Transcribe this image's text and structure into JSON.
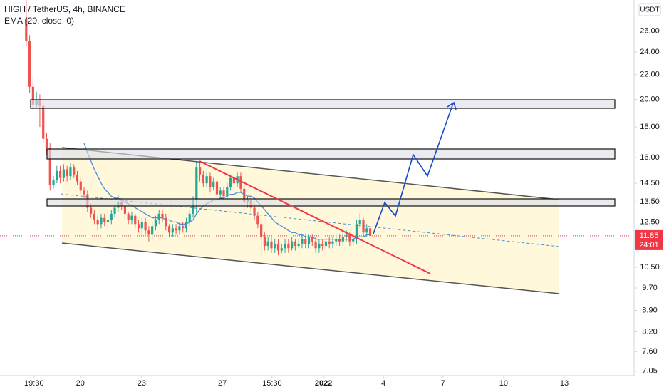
{
  "chart_data": {
    "type": "candlestick",
    "title": "HIGH / TetherUS, 4h, BINANCE",
    "currency": "USDT",
    "log_scale": true,
    "grid": false,
    "up_color": "#26a69a",
    "down_color": "#ef5350",
    "xlim": [
      -7.7,
      178.5
    ],
    "ylim": [
      6.93,
      29.3
    ],
    "xticks": [
      {
        "value": 2.3,
        "label": "19:30"
      },
      {
        "value": 15.9,
        "label": "20"
      },
      {
        "value": 33.9,
        "label": "23"
      },
      {
        "value": 57.6,
        "label": "27"
      },
      {
        "value": 72.2,
        "label": "15:30"
      },
      {
        "value": 87.3,
        "label": "2022"
      },
      {
        "value": 104.9,
        "label": "4"
      },
      {
        "value": 122.4,
        "label": "7"
      },
      {
        "value": 140.2,
        "label": "10"
      },
      {
        "value": 158,
        "label": "13"
      }
    ],
    "yticks": [
      {
        "value": 26,
        "label": "26.00"
      },
      {
        "value": 24,
        "label": "24.00"
      },
      {
        "value": 22,
        "label": "22.00"
      },
      {
        "value": 20,
        "label": "20.00"
      },
      {
        "value": 18,
        "label": "18.00"
      },
      {
        "value": 16,
        "label": "16.00"
      },
      {
        "value": 14.5,
        "label": "14.50"
      },
      {
        "value": 13.5,
        "label": "13.50"
      },
      {
        "value": 12.5,
        "label": "12.50"
      },
      {
        "value": 10.5,
        "label": "10.50"
      },
      {
        "value": 9.7,
        "label": "9.70"
      },
      {
        "value": 8.9,
        "label": "8.90"
      },
      {
        "value": 8.2,
        "label": "8.20"
      },
      {
        "value": 7.6,
        "label": "7.60"
      },
      {
        "value": 7.05,
        "label": "7.05"
      }
    ],
    "open": [
      27.3,
      25.0,
      21.0,
      19.6,
      20.0,
      19.5,
      17.2,
      16.6,
      14.4,
      14.7,
      15.2,
      14.8,
      15.3,
      14.9,
      15.4,
      15.0,
      14.6,
      14.1,
      13.9,
      13.2,
      12.9,
      12.6,
      12.4,
      12.7,
      12.5,
      12.6,
      12.9,
      13.2,
      13.5,
      13.3,
      12.9,
      12.6,
      12.8,
      12.4,
      12.2,
      12.5,
      12.1,
      11.9,
      12.3,
      12.6,
      12.9,
      12.7,
      12.3,
      12.0,
      12.2,
      12.1,
      12.3,
      12.2,
      12.5,
      12.9,
      13.6,
      15.4,
      15.0,
      14.5,
      14.9,
      14.3,
      14.6,
      13.9,
      14.1,
      13.8,
      14.3,
      14.8,
      14.5,
      14.9,
      14.2,
      13.5,
      13.6,
      13.2,
      12.8,
      12.4,
      11.8,
      11.4,
      11.6,
      11.3,
      11.5,
      11.2,
      11.3,
      11.5,
      11.3,
      11.6,
      11.4,
      11.5,
      11.7,
      11.5,
      11.8,
      11.6,
      11.3,
      11.5,
      11.4,
      11.6,
      11.5,
      11.6,
      11.7,
      11.6,
      11.8,
      11.9,
      11.6,
      11.7,
      12.4,
      12.6,
      12.0,
      12.2
    ],
    "high": [
      29.3,
      25.6,
      21.8,
      20.6,
      20.4,
      19.8,
      17.6,
      16.9,
      14.9,
      15.5,
      15.5,
      15.6,
      15.5,
      15.7,
      15.6,
      15.2,
      14.8,
      14.3,
      14.1,
      13.4,
      13.1,
      12.8,
      12.9,
      12.9,
      12.8,
      13.1,
      13.4,
      13.9,
      13.7,
      13.5,
      13.0,
      13.0,
      12.9,
      12.6,
      12.7,
      12.7,
      12.3,
      12.5,
      12.8,
      13.1,
      13.1,
      12.9,
      12.4,
      12.4,
      12.4,
      12.5,
      12.5,
      12.7,
      13.1,
      13.8,
      15.8,
      15.7,
      15.2,
      15.1,
      15.1,
      14.8,
      14.8,
      14.3,
      14.3,
      14.5,
      15.0,
      15.0,
      15.1,
      15.1,
      14.4,
      13.8,
      13.8,
      13.4,
      13.0,
      12.6,
      12.0,
      11.8,
      11.8,
      11.7,
      11.7,
      11.5,
      11.7,
      11.7,
      11.8,
      11.7,
      11.7,
      11.9,
      11.9,
      11.9,
      11.9,
      11.8,
      11.7,
      11.7,
      11.8,
      11.8,
      11.8,
      11.9,
      11.9,
      12.0,
      12.1,
      12.0,
      11.9,
      12.6,
      12.9,
      12.7,
      12.4,
      12.3
    ],
    "low": [
      24.6,
      20.5,
      19.2,
      19.4,
      18.0,
      16.9,
      16.2,
      14.1,
      14.2,
      14.5,
      14.5,
      14.6,
      14.6,
      14.7,
      14.8,
      14.4,
      13.9,
      13.7,
      13.0,
      12.7,
      12.4,
      12.1,
      12.2,
      12.3,
      12.3,
      12.4,
      12.7,
      13.0,
      13.1,
      12.6,
      12.4,
      12.4,
      12.2,
      12.0,
      11.9,
      11.9,
      11.6,
      11.7,
      12.1,
      12.4,
      12.5,
      12.1,
      11.8,
      11.8,
      11.9,
      11.9,
      12.0,
      12.0,
      12.3,
      12.7,
      12.9,
      14.6,
      14.3,
      14.3,
      14.0,
      14.1,
      13.7,
      13.7,
      13.6,
      13.6,
      14.1,
      14.2,
      14.3,
      14.0,
      13.3,
      13.2,
      13.0,
      12.6,
      12.2,
      10.9,
      11.2,
      11.2,
      11.1,
      11.1,
      11.0,
      11.1,
      11.1,
      11.1,
      11.2,
      11.2,
      11.3,
      11.3,
      11.3,
      11.3,
      11.4,
      11.1,
      11.1,
      11.2,
      11.2,
      11.3,
      11.3,
      11.4,
      11.4,
      11.4,
      11.6,
      11.4,
      11.4,
      11.5,
      12.2,
      11.8,
      11.8,
      11.7
    ],
    "close": [
      25.0,
      21.0,
      19.6,
      20.0,
      19.5,
      17.2,
      16.6,
      14.4,
      14.7,
      15.2,
      14.8,
      15.3,
      14.9,
      15.4,
      15.0,
      14.6,
      14.1,
      13.9,
      13.2,
      12.9,
      12.6,
      12.4,
      12.7,
      12.5,
      12.6,
      12.9,
      13.2,
      13.5,
      13.3,
      12.9,
      12.6,
      12.8,
      12.4,
      12.2,
      12.5,
      12.1,
      11.9,
      12.3,
      12.6,
      12.9,
      12.7,
      12.3,
      12.0,
      12.2,
      12.1,
      12.3,
      12.2,
      12.5,
      12.9,
      13.6,
      15.4,
      15.0,
      14.5,
      14.9,
      14.3,
      14.6,
      13.9,
      14.1,
      13.8,
      14.3,
      14.8,
      14.5,
      14.9,
      14.2,
      13.5,
      13.6,
      13.2,
      12.8,
      12.4,
      11.8,
      11.4,
      11.6,
      11.3,
      11.5,
      11.2,
      11.3,
      11.5,
      11.3,
      11.6,
      11.4,
      11.5,
      11.7,
      11.5,
      11.8,
      11.6,
      11.3,
      11.5,
      11.4,
      11.6,
      11.5,
      11.6,
      11.7,
      11.6,
      11.8,
      11.9,
      11.6,
      11.7,
      12.4,
      12.6,
      12.0,
      12.2,
      11.85
    ],
    "series": [
      {
        "name": "EMA (20, close, 0)",
        "color": "#4a90d9",
        "values": [
          null,
          null,
          null,
          null,
          null,
          null,
          null,
          null,
          null,
          null,
          null,
          null,
          null,
          null,
          null,
          null,
          null,
          16.9,
          16.3,
          15.8,
          15.3,
          14.9,
          14.5,
          14.2,
          14.0,
          13.8,
          13.7,
          13.7,
          13.6,
          13.5,
          13.4,
          13.3,
          13.2,
          13.1,
          13.0,
          12.9,
          12.8,
          12.7,
          12.7,
          12.7,
          12.7,
          12.6,
          12.6,
          12.5,
          12.5,
          12.4,
          12.4,
          12.4,
          12.5,
          12.6,
          12.9,
          13.1,
          13.3,
          13.4,
          13.5,
          13.6,
          13.6,
          13.7,
          13.7,
          13.8,
          13.9,
          13.9,
          14.0,
          14.0,
          13.9,
          13.8,
          13.8,
          13.7,
          13.5,
          13.3,
          13.1,
          12.9,
          12.7,
          12.5,
          12.4,
          12.3,
          12.2,
          12.1,
          12.0,
          12.0,
          11.9,
          11.9,
          11.8,
          11.8,
          11.8,
          11.7,
          11.7,
          11.7,
          11.7,
          11.7,
          11.7,
          11.7,
          11.7,
          11.7,
          11.7,
          11.7,
          11.7,
          11.8,
          11.8,
          11.8,
          11.9,
          11.9
        ]
      }
    ],
    "last_price": 11.85,
    "last_price_color": "#f23645",
    "countdown": "24:01"
  }
}
